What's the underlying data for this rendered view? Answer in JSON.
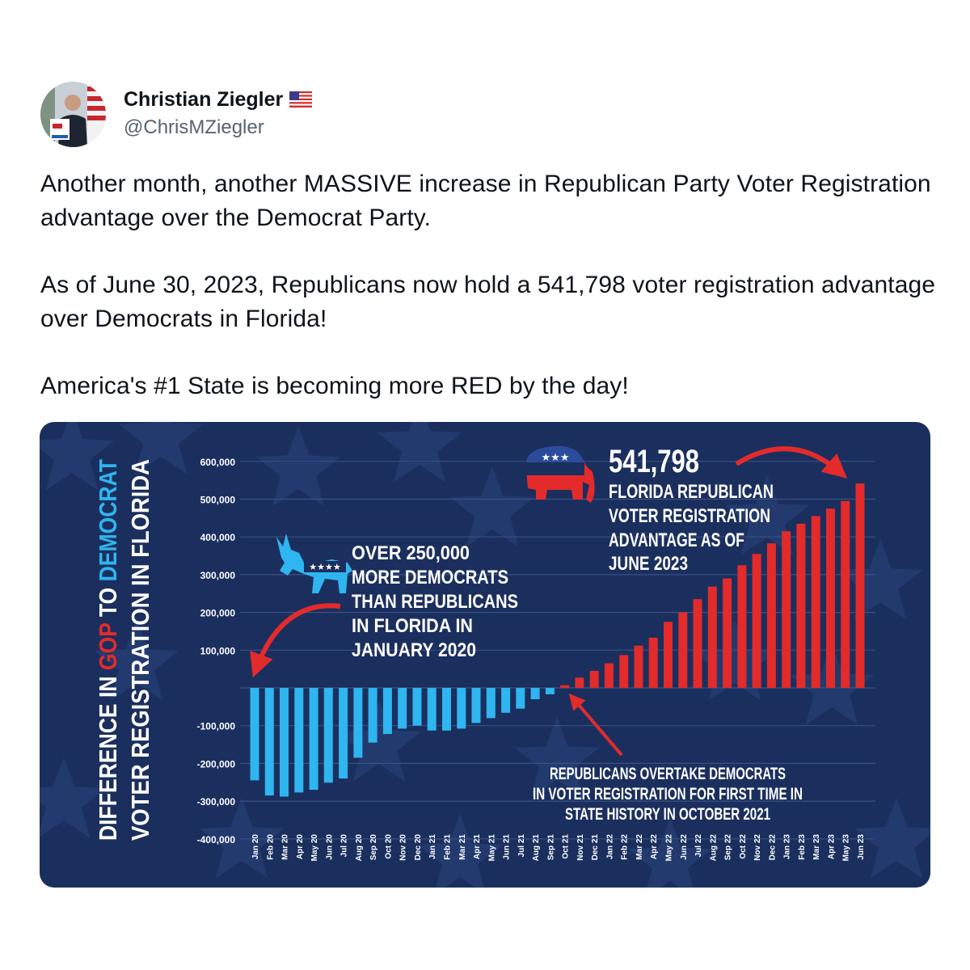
{
  "tweet": {
    "author_name": "Christian Ziegler",
    "handle": "@ChrisMZiegler",
    "flag_icon": "us-flag-icon",
    "paragraphs": [
      "Another month, another MASSIVE increase in Republican Party Voter Registration advantage over the Democrat Party.",
      "As of June 30, 2023, Republicans now hold a 541,798 voter registration advantage over Democrats in Florida!",
      "America's #1 State is becoming more RED by the day!"
    ]
  },
  "infographic": {
    "colors": {
      "background": "#1b2f5e",
      "democrat": "#2fb5f0",
      "republican": "#e32b2b",
      "text": "#ffffff"
    },
    "title_line1_a": "DIFFERENCE IN ",
    "title_line1_b": "GOP",
    "title_line1_c": " TO ",
    "title_line1_d": "DEMOCRAT",
    "title_line2": "VOTER REGISTRATION IN FLORIDA",
    "gop_stat": "541,798",
    "gop_caption": [
      "FLORIDA REPUBLICAN",
      "VOTER REGISTRATION",
      "ADVANTAGE AS OF",
      "JUNE 2023"
    ],
    "dem_caption": [
      "OVER 250,000",
      "MORE DEMOCRATS",
      "THAN REPUBLICANS",
      "IN FLORIDA  IN",
      "JANUARY 2020"
    ],
    "overtake_caption": [
      "REPUBLICANS OVERTAKE DEMOCRATS",
      "IN VOTER REGISTRATION FOR FIRST TIME IN",
      "STATE HISTORY IN OCTOBER 2021"
    ],
    "elephant_icon": "republican-elephant-icon",
    "donkey_icon": "democrat-donkey-icon"
  },
  "chart_data": {
    "type": "bar",
    "title": "DIFFERENCE IN GOP TO DEMOCRAT VOTER REGISTRATION IN FLORIDA",
    "ylim": [
      -400000,
      600000
    ],
    "y_ticks": [
      {
        "label": "600,000",
        "value": 600000
      },
      {
        "label": "500,000",
        "value": 500000
      },
      {
        "label": "400,000",
        "value": 400000
      },
      {
        "label": "300,000",
        "value": 300000
      },
      {
        "label": "200,000",
        "value": 200000
      },
      {
        "label": "100,000",
        "value": 100000
      },
      {
        "label": "-100,000",
        "value": -100000
      },
      {
        "label": "-200,000",
        "value": -200000
      },
      {
        "label": "-300,000",
        "value": -300000
      },
      {
        "label": "-400,000",
        "value": -400000
      }
    ],
    "grid": true,
    "categories": [
      "Jan 20",
      "Feb 20",
      "Mar 20",
      "Apr 20",
      "May 20",
      "Jun 20",
      "Jul 20",
      "Aug 20",
      "Sep 20",
      "Oct 20",
      "Nov 20",
      "Dec 20",
      "Jan 21",
      "Feb 21",
      "Mar 21",
      "Apr 21",
      "May 21",
      "Jun 21",
      "Jul 21",
      "Aug 21",
      "Sep 21",
      "Oct 21",
      "Nov 21",
      "Dec 21",
      "Jan 22",
      "Feb 22",
      "Mar 22",
      "Apr 22",
      "May 22",
      "Jun 22",
      "Jul 22",
      "Aug 22",
      "Sep 22",
      "Oct 22",
      "Nov 22",
      "Dec 22",
      "Jan 23",
      "Feb 23",
      "Mar 23",
      "Apr 23",
      "May 23",
      "Jun 23"
    ],
    "values": [
      -245000,
      -285000,
      -288000,
      -277000,
      -270000,
      -251000,
      -240000,
      -185000,
      -145000,
      -122000,
      -108000,
      -100000,
      -113000,
      -113000,
      -108000,
      -93000,
      -80000,
      -66000,
      -55000,
      -30000,
      -17000,
      7000,
      27000,
      45000,
      65000,
      87000,
      112000,
      133000,
      175000,
      200000,
      235000,
      268000,
      290000,
      325000,
      355000,
      383000,
      415000,
      435000,
      455000,
      475000,
      495000,
      541798
    ]
  }
}
